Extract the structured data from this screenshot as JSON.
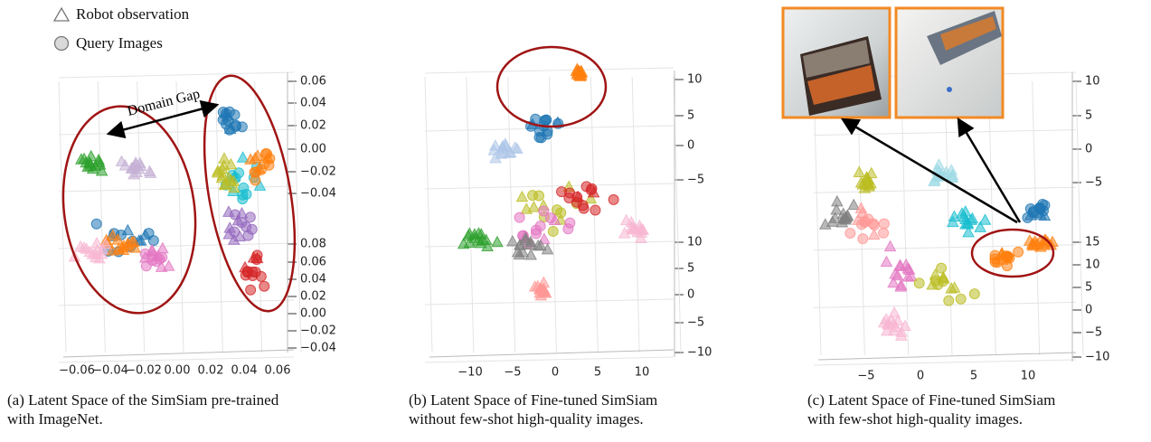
{
  "legend": [
    "Robot observation",
    "Query Images"
  ],
  "panels": [
    {
      "caption": [
        "(a) Latent Space of the SimSiam pre-trained",
        "with ImageNet."
      ],
      "annotation": "Domain Gap",
      "x_ticks": [
        "−0.06",
        "−0.04",
        "−0.02",
        "0.00",
        "0.02",
        "0.04",
        "0.06"
      ],
      "upper_ticks": [
        "0.06",
        "0.04",
        "0.02",
        "0.00",
        "−0.02",
        "−0.04"
      ],
      "lower_ticks": [
        "0.08",
        "0.06",
        "0.04",
        "0.02",
        "0.00",
        "−0.02",
        "−0.04"
      ]
    },
    {
      "caption": [
        "(b) Latent Space of Fine-tuned SimSiam",
        "without few-shot high-quality images."
      ],
      "x_ticks": [
        "−10",
        "−5",
        "0",
        "5",
        "10"
      ],
      "upper_ticks": [
        "10",
        "5",
        "0",
        "−5"
      ],
      "lower_ticks": [
        "10",
        "5",
        "0",
        "−5",
        "−10"
      ]
    },
    {
      "caption": [
        "(c) Latent Space of Fine-tuned SimSiam",
        "with few-shot high-quality images."
      ],
      "x_ticks": [
        "−5",
        "0",
        "5",
        "10"
      ],
      "upper_ticks": [
        "10",
        "5",
        "0",
        "−5"
      ],
      "lower_ticks": [
        "15",
        "10",
        "5",
        "0",
        "−5",
        "−10"
      ]
    }
  ]
}
